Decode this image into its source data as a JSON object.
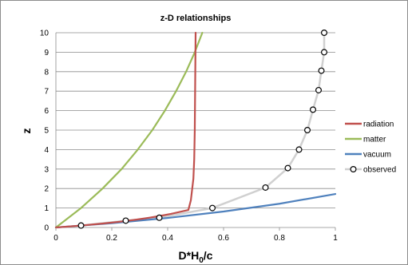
{
  "chart_data": {
    "type": "line",
    "title": "z-D relationships",
    "xlabel_main": "D*H",
    "xlabel_sub": "0",
    "xlabel_tail": "/c",
    "ylabel": "z",
    "xlim": [
      0,
      1
    ],
    "ylim": [
      0,
      10
    ],
    "x_ticks": [
      0,
      0.2,
      0.4,
      0.6,
      0.8,
      1
    ],
    "x_tick_labels": [
      "0",
      "0.2",
      "0.4",
      "0.6",
      "0.8",
      "1"
    ],
    "y_ticks": [
      0,
      1,
      2,
      3,
      4,
      5,
      6,
      7,
      8,
      9,
      10
    ],
    "y_tick_labels": [
      "0",
      "1",
      "2",
      "3",
      "4",
      "5",
      "6",
      "7",
      "8",
      "9",
      "10"
    ],
    "grid": "horizontal",
    "legend_position": "right",
    "series": [
      {
        "name": "radiation",
        "color": "#c0504d",
        "style": "line",
        "x": [
          0,
          0.091,
          0.167,
          0.231,
          0.286,
          0.333,
          0.375,
          0.412,
          0.444,
          0.474,
          0.483,
          0.492,
          0.495,
          0.497,
          0.5
        ],
        "y": [
          0,
          0.1,
          0.2,
          0.3,
          0.4,
          0.5,
          0.6,
          0.7,
          0.8,
          0.9,
          1.4,
          2.5,
          3.5,
          5,
          10
        ]
      },
      {
        "name": "matter",
        "color": "#9bbb59",
        "style": "line",
        "x": [
          0,
          0.09,
          0.167,
          0.235,
          0.293,
          0.345,
          0.39,
          0.43,
          0.466,
          0.497,
          0.524
        ],
        "y": [
          0,
          1,
          2,
          3,
          4,
          5,
          6,
          7,
          8,
          9,
          10
        ]
      },
      {
        "name": "vacuum",
        "color": "#4f81bd",
        "style": "line",
        "x": [
          0,
          0.2,
          0.4,
          0.6,
          0.8,
          1.0
        ],
        "y": [
          0,
          0.22,
          0.49,
          0.82,
          1.22,
          1.72
        ]
      },
      {
        "name": "observed",
        "color": "#d0d0d0",
        "marker_color": "#000000",
        "style": "line-markers",
        "x": [
          0.09,
          0.25,
          0.37,
          0.56,
          0.75,
          0.83,
          0.87,
          0.9,
          0.92,
          0.94,
          0.95,
          0.96,
          0.96
        ],
        "y": [
          0.1,
          0.35,
          0.5,
          1.0,
          2.05,
          3.05,
          4.0,
          5.0,
          6.05,
          7.05,
          8.05,
          9.0,
          10.0
        ]
      }
    ]
  },
  "colors": {
    "frame": "#8c8c8c",
    "grid": "#8c8c8c",
    "background": "#ffffff"
  }
}
